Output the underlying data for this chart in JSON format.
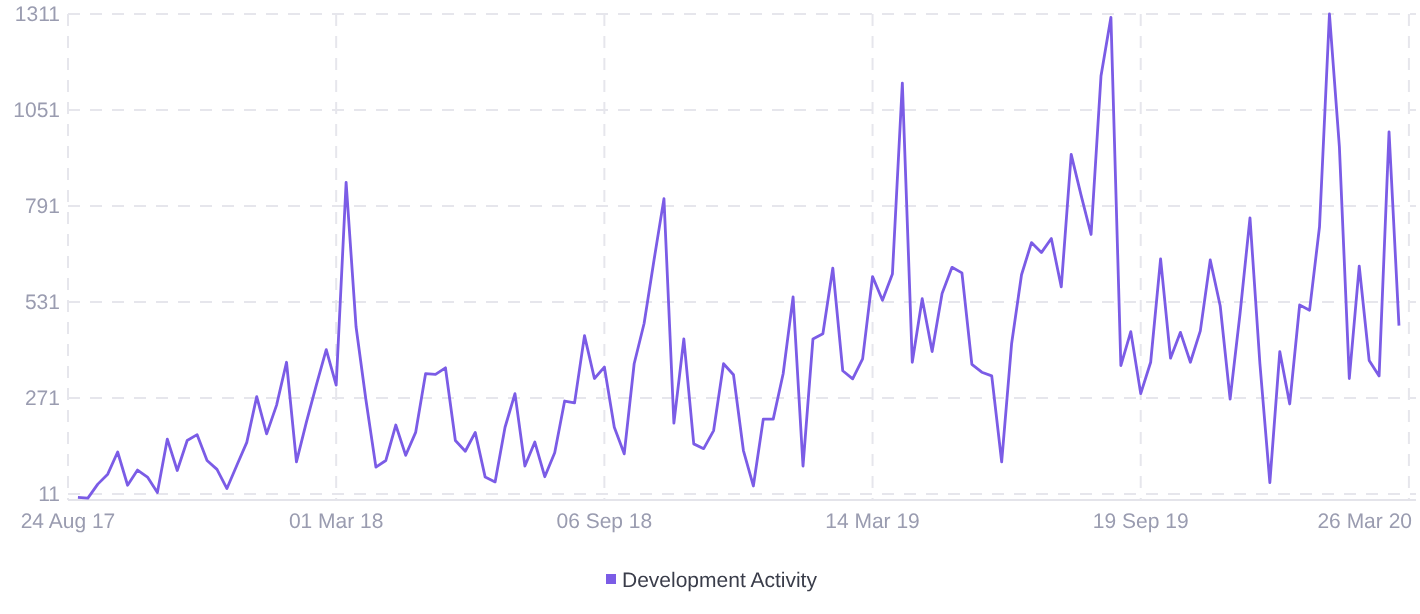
{
  "chart_data": {
    "type": "line",
    "x": [
      "2017-08-31",
      "2017-09-07",
      "2017-09-14",
      "2017-09-21",
      "2017-09-28",
      "2017-10-05",
      "2017-10-12",
      "2017-10-19",
      "2017-10-26",
      "2017-11-02",
      "2017-11-09",
      "2017-11-16",
      "2017-11-23",
      "2017-11-30",
      "2017-12-07",
      "2017-12-14",
      "2017-12-21",
      "2017-12-28",
      "2018-01-04",
      "2018-01-11",
      "2018-01-18",
      "2018-01-25",
      "2018-02-01",
      "2018-02-08",
      "2018-02-15",
      "2018-02-22",
      "2018-03-01",
      "2018-03-08",
      "2018-03-15",
      "2018-03-22",
      "2018-03-29",
      "2018-04-05",
      "2018-04-12",
      "2018-04-19",
      "2018-04-26",
      "2018-05-03",
      "2018-05-10",
      "2018-05-17",
      "2018-05-24",
      "2018-05-31",
      "2018-06-07",
      "2018-06-14",
      "2018-06-21",
      "2018-06-28",
      "2018-07-05",
      "2018-07-12",
      "2018-07-19",
      "2018-07-26",
      "2018-08-02",
      "2018-08-09",
      "2018-08-16",
      "2018-08-23",
      "2018-08-30",
      "2018-09-06",
      "2018-09-13",
      "2018-09-20",
      "2018-09-27",
      "2018-10-04",
      "2018-10-11",
      "2018-10-18",
      "2018-10-25",
      "2018-11-01",
      "2018-11-08",
      "2018-11-15",
      "2018-11-22",
      "2018-11-29",
      "2018-12-06",
      "2018-12-13",
      "2018-12-20",
      "2018-12-27",
      "2019-01-03",
      "2019-01-10",
      "2019-01-17",
      "2019-01-24",
      "2019-01-31",
      "2019-02-07",
      "2019-02-14",
      "2019-02-21",
      "2019-02-28",
      "2019-03-07",
      "2019-03-14",
      "2019-03-21",
      "2019-03-28",
      "2019-04-04",
      "2019-04-11",
      "2019-04-18",
      "2019-04-25",
      "2019-05-02",
      "2019-05-09",
      "2019-05-16",
      "2019-05-23",
      "2019-05-30",
      "2019-06-06",
      "2019-06-13",
      "2019-06-20",
      "2019-06-27",
      "2019-07-04",
      "2019-07-11",
      "2019-07-18",
      "2019-07-25",
      "2019-08-01",
      "2019-08-08",
      "2019-08-15",
      "2019-08-22",
      "2019-08-29",
      "2019-09-05",
      "2019-09-12",
      "2019-09-19",
      "2019-09-26",
      "2019-10-03",
      "2019-10-10",
      "2019-10-17",
      "2019-10-24",
      "2019-10-31",
      "2019-11-07",
      "2019-11-14",
      "2019-11-21",
      "2019-11-28",
      "2019-12-05",
      "2019-12-12",
      "2019-12-19",
      "2019-12-26",
      "2020-01-02",
      "2020-01-09",
      "2020-01-16",
      "2020-01-23",
      "2020-01-30",
      "2020-02-06",
      "2020-02-13",
      "2020-02-20",
      "2020-02-27",
      "2020-03-05",
      "2020-03-12",
      "2020-03-19"
    ],
    "series": [
      {
        "name": "Development Activity",
        "color": "#7b5ce6",
        "values": [
          2,
          0,
          38,
          65,
          125,
          35,
          76,
          57,
          15,
          160,
          75,
          156,
          172,
          102,
          78,
          26,
          89,
          151,
          275,
          174,
          252,
          368,
          98,
          206,
          306,
          402,
          306,
          855,
          464,
          265,
          84,
          102,
          198,
          116,
          178,
          337,
          335,
          353,
          156,
          127,
          178,
          57,
          44,
          192,
          283,
          87,
          152,
          58,
          123,
          263,
          258,
          440,
          324,
          355,
          192,
          120,
          364,
          473,
          645,
          811,
          203,
          431,
          147,
          134,
          183,
          364,
          334,
          129,
          33,
          214,
          214,
          337,
          545,
          87,
          431,
          445,
          623,
          345,
          323,
          377,
          600,
          536,
          607,
          1124,
          368,
          540,
          397,
          554,
          625,
          610,
          362,
          341,
          331,
          98,
          418,
          605,
          692,
          665,
          703,
          572,
          931,
          820,
          714,
          1143,
          1302,
          359,
          451,
          283,
          368,
          648,
          379,
          449,
          368,
          453,
          645,
          521,
          268,
          500,
          759,
          364,
          42,
          397,
          255,
          523,
          509,
          735,
          1311,
          952,
          324,
          628,
          373,
          331,
          992,
          467
        ]
      }
    ],
    "xlim": [
      "2017-08-24",
      "2020-03-31"
    ],
    "xticks": [
      {
        "value": "2017-08-24",
        "label": "24 Aug 17"
      },
      {
        "value": "2018-03-01",
        "label": "01 Mar 18"
      },
      {
        "value": "2018-09-06",
        "label": "06 Sep 18"
      },
      {
        "value": "2019-03-14",
        "label": "14 Mar 19"
      },
      {
        "value": "2019-09-19",
        "label": "19 Sep 19"
      },
      {
        "value": "2020-03-26",
        "label": "26 Mar 20"
      }
    ],
    "ylim": [
      -5,
      1311
    ],
    "yticks": [
      11,
      271,
      531,
      791,
      1051,
      1311
    ],
    "grid": true,
    "legend": "bottom"
  }
}
